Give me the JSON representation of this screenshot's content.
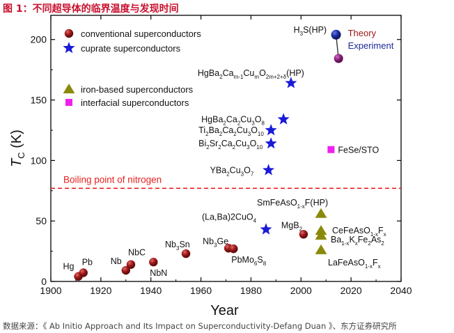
{
  "figure": {
    "title": "图 1：不同超导体的临界温度与发现时间",
    "source": "数据来源：《 Ab Initio Approach and Its Impact on Superconductivity-Defang Duan 》、东方证券研究所"
  },
  "chart_data": {
    "type": "scatter",
    "xlabel": "Year",
    "ylabel": "T",
    "ylabel_sub": "C",
    "ylabel_unit": "(K)",
    "xlim": [
      1900,
      2040
    ],
    "ylim": [
      0,
      220
    ],
    "xticks": [
      1900,
      1920,
      1940,
      1960,
      1980,
      2000,
      2020,
      2040
    ],
    "yticks": [
      0,
      50,
      100,
      150,
      200
    ],
    "nitrogen_line": {
      "y": 77,
      "label": "Boiling point of nitrogen",
      "color": "#e8201f"
    },
    "legend": [
      {
        "label": "conventional superconductors",
        "marker": "sphere",
        "color": "#8b1414"
      },
      {
        "label": "cuprate superconductors",
        "marker": "star",
        "color": "#1a1ad8"
      },
      {
        "label": "iron-based superconductors",
        "marker": "triangle",
        "color": "#8a8a0a"
      },
      {
        "label": "interfacial superconductors",
        "marker": "square",
        "color": "#ee20ee"
      }
    ],
    "series": [
      {
        "name": "conventional superconductors",
        "marker": "sphere",
        "color": "#8b1414",
        "points": [
          {
            "x": 1911,
            "y": 4.2,
            "label": [
              "Hg"
            ]
          },
          {
            "x": 1913,
            "y": 7.2,
            "label": [
              "Pb"
            ]
          },
          {
            "x": 1930,
            "y": 9.2,
            "label": [
              "Nb"
            ]
          },
          {
            "x": 1932,
            "y": 14,
            "label": [
              "NbC"
            ]
          },
          {
            "x": 1941,
            "y": 16,
            "label": [
              "NbN"
            ]
          },
          {
            "x": 1954,
            "y": 23,
            "label": [
              "Nb",
              "3",
              "Sn"
            ]
          },
          {
            "x": 1971,
            "y": 27.5,
            "label": [
              "Nb",
              "3",
              "Ge"
            ]
          },
          {
            "x": 1973,
            "y": 27,
            "label": [
              "PbMo",
              "6",
              "S",
              "8"
            ]
          },
          {
            "x": 2001,
            "y": 39,
            "label": [
              "MgB",
              "2"
            ]
          }
        ]
      },
      {
        "name": "cuprate superconductors",
        "marker": "star",
        "color": "#1a1ad8",
        "points": [
          {
            "x": 1986,
            "y": 43,
            "label": [
              "(La,Ba)2CuO",
              "4"
            ]
          },
          {
            "x": 1987,
            "y": 92,
            "label": [
              "YBa",
              "2",
              "Cu",
              "3",
              "O",
              "7"
            ]
          },
          {
            "x": 1988,
            "y": 114,
            "label": [
              "Bi",
              "2",
              "Sr",
              "2",
              "Ca",
              "2",
              "Cu",
              "3",
              "O",
              "10"
            ]
          },
          {
            "x": 1988,
            "y": 125,
            "label": [
              "Ti",
              "2",
              "Ba",
              "2",
              "Ca",
              "2",
              "Cu",
              "3",
              "O",
              "10"
            ]
          },
          {
            "x": 1993,
            "y": 134,
            "label": [
              "HgBa",
              "2",
              "Ca",
              "2",
              "Cu",
              "3",
              "O",
              "8"
            ]
          },
          {
            "x": 1996,
            "y": 164,
            "label": [
              "HgBa",
              "2",
              "Ca",
              "m-1",
              "Cu",
              "m",
              "O",
              "2m+2+δ",
              "(HP)"
            ]
          }
        ]
      },
      {
        "name": "iron-based superconductors",
        "marker": "triangle",
        "color": "#8a8a0a",
        "points": [
          {
            "x": 2008,
            "y": 56,
            "label": [
              "SmFeAsO",
              "1-x",
              "F(HP)"
            ]
          },
          {
            "x": 2008,
            "y": 42,
            "label": [
              "CeFeAsO",
              "1-x",
              "F",
              "x"
            ]
          },
          {
            "x": 2008,
            "y": 38,
            "label": [
              "Ba",
              "1-x",
              "K",
              "x",
              "Fe",
              "2",
              "As",
              "2"
            ]
          },
          {
            "x": 2008,
            "y": 26,
            "label": [
              "LaFeAsO",
              "1-x",
              "F",
              "x"
            ]
          }
        ]
      },
      {
        "name": "interfacial superconductors",
        "marker": "square",
        "color": "#ee20ee",
        "points": [
          {
            "x": 2012,
            "y": 109,
            "label": [
              "FeSe/STO"
            ]
          }
        ]
      }
    ],
    "h3s": {
      "label": [
        "H",
        "3",
        "S(HP)"
      ],
      "theory": {
        "x": 2014,
        "y": 204,
        "label": "Theory",
        "color": "#a01818",
        "marker_color": "#1a2a9a"
      },
      "experiment": {
        "x": 2015,
        "y": 193,
        "label": "Experiment",
        "color": "#1a2a9a",
        "marker_color": "#8b1f7c"
      }
    }
  }
}
